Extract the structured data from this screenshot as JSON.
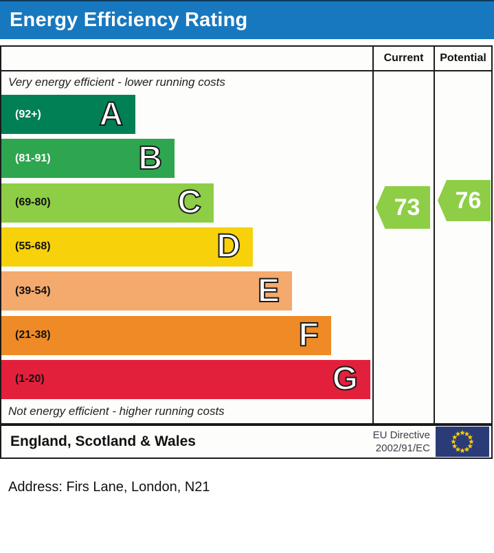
{
  "title": "Energy Efficiency Rating",
  "columns": {
    "current": "Current",
    "potential": "Potential"
  },
  "captions": {
    "top": "Very energy efficient - lower running costs",
    "bottom": "Not energy efficient - higher running costs"
  },
  "footer": {
    "region": "England, Scotland & Wales",
    "directive_line1": "EU Directive",
    "directive_line2": "2002/91/EC",
    "flag_colors": {
      "field": "#2a3b77",
      "stars": "#ffcc00"
    }
  },
  "address_line": "Address: Firs Lane, London, N21",
  "colors": {
    "title_bar": "#1878bf",
    "border": "#1a1a1a",
    "arrow": "#8dce46"
  },
  "chart_data": {
    "type": "bar",
    "title": "Energy Efficiency Rating",
    "orientation": "horizontal",
    "bands": [
      {
        "letter": "A",
        "range": "(92+)",
        "min": 92,
        "max": 100,
        "color": "#008054",
        "label_color": "#ffffff"
      },
      {
        "letter": "B",
        "range": "(81-91)",
        "min": 81,
        "max": 91,
        "color": "#2ea64f",
        "label_color": "#ffffff"
      },
      {
        "letter": "C",
        "range": "(69-80)",
        "min": 69,
        "max": 80,
        "color": "#8dce46",
        "label_color": "#111111"
      },
      {
        "letter": "D",
        "range": "(55-68)",
        "min": 55,
        "max": 68,
        "color": "#f7d10a",
        "label_color": "#111111"
      },
      {
        "letter": "E",
        "range": "(39-54)",
        "min": 39,
        "max": 54,
        "color": "#f4a96d",
        "label_color": "#111111"
      },
      {
        "letter": "F",
        "range": "(21-38)",
        "min": 21,
        "max": 38,
        "color": "#ee8b26",
        "label_color": "#111111"
      },
      {
        "letter": "G",
        "range": "(1-20)",
        "min": 1,
        "max": 20,
        "color": "#e3203b",
        "label_color": "#111111"
      }
    ],
    "ratings": {
      "current": "73",
      "potential": "76",
      "band_of_ratings": "C"
    },
    "annotations": [
      "Very energy efficient - lower running costs",
      "Not energy efficient - higher running costs"
    ],
    "scale": [
      1,
      100
    ],
    "legend_position": "none"
  }
}
